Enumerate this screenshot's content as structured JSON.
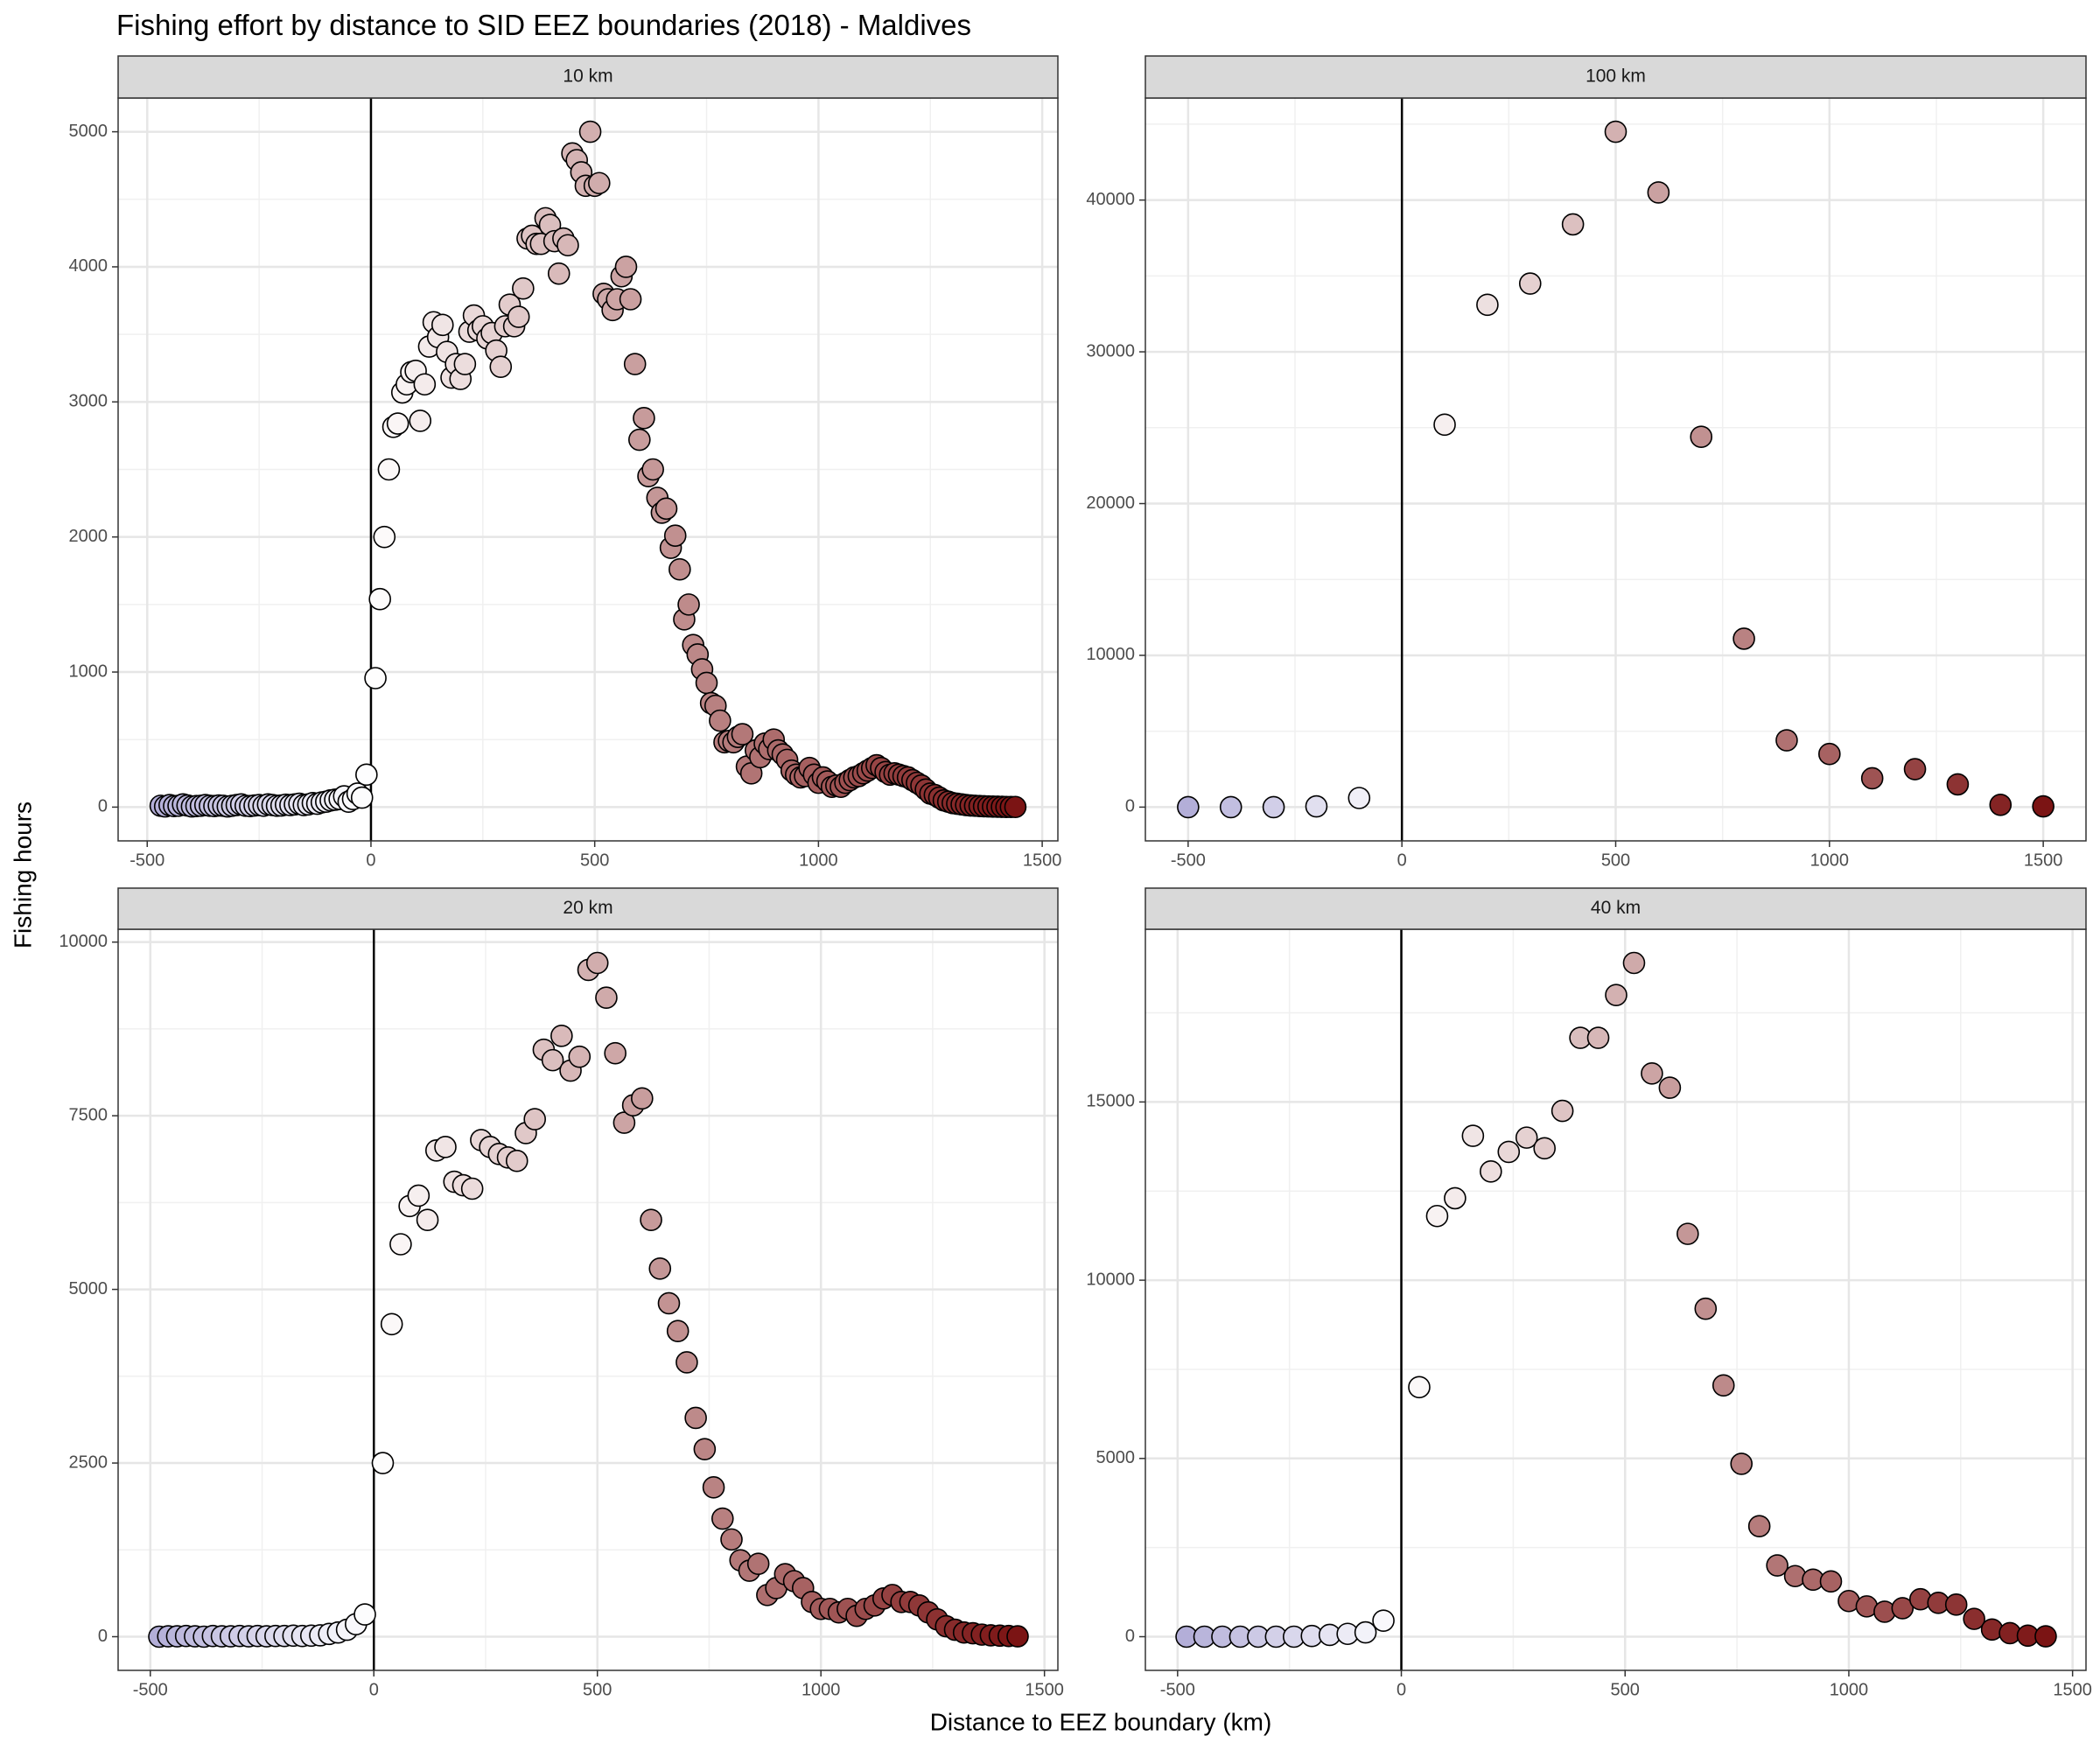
{
  "title": "Fishing effort by distance to SID EEZ boundaries (2018) - Maldives",
  "x_label": "Distance to EEZ boundary (km)",
  "y_label": "Fishing hours",
  "color_scale": {
    "low": "#b3aed8",
    "mid": "#ffffff",
    "high": "#7b1414"
  },
  "chart_data": [
    {
      "type": "scatter",
      "title": "10 km",
      "x": [
        -470,
        -460,
        -450,
        -440,
        -430,
        -420,
        -410,
        -400,
        -390,
        -380,
        -370,
        -360,
        -350,
        -340,
        -330,
        -320,
        -310,
        -300,
        -290,
        -280,
        -270,
        -260,
        -250,
        -240,
        -230,
        -220,
        -210,
        -200,
        -190,
        -180,
        -170,
        -160,
        -150,
        -140,
        -130,
        -120,
        -110,
        -100,
        -90,
        -80,
        -70,
        -60,
        -50,
        -40,
        -30,
        -20,
        -10,
        10,
        20,
        30,
        40,
        50,
        60,
        70,
        80,
        90,
        100,
        110,
        120,
        130,
        140,
        150,
        160,
        170,
        180,
        190,
        200,
        210,
        220,
        230,
        240,
        250,
        260,
        270,
        280,
        290,
        300,
        310,
        320,
        330,
        340,
        350,
        360,
        370,
        380,
        390,
        400,
        410,
        420,
        430,
        440,
        450,
        460,
        470,
        480,
        490,
        500,
        510,
        520,
        530,
        540,
        550,
        560,
        570,
        580,
        590,
        600,
        610,
        620,
        630,
        640,
        650,
        660,
        670,
        680,
        690,
        700,
        710,
        720,
        730,
        740,
        750,
        760,
        770,
        780,
        790,
        800,
        810,
        820,
        830,
        840,
        850,
        860,
        870,
        880,
        890,
        900,
        910,
        920,
        930,
        940,
        950,
        960,
        970,
        980,
        990,
        1000,
        1010,
        1020,
        1030,
        1040,
        1050,
        1060,
        1070,
        1080,
        1090,
        1100,
        1110,
        1120,
        1130,
        1140,
        1150,
        1160,
        1170,
        1180,
        1190,
        1200,
        1210,
        1220,
        1230,
        1240,
        1250,
        1260,
        1270,
        1280,
        1290,
        1300,
        1310,
        1320,
        1330,
        1340,
        1350,
        1360,
        1370,
        1380,
        1390,
        1400,
        1410,
        1420,
        1430,
        1440
      ],
      "values": [
        10,
        5,
        15,
        8,
        10,
        20,
        12,
        5,
        8,
        10,
        15,
        10,
        8,
        12,
        10,
        5,
        10,
        15,
        20,
        10,
        8,
        12,
        15,
        10,
        20,
        15,
        10,
        12,
        18,
        15,
        20,
        25,
        15,
        20,
        30,
        25,
        35,
        40,
        50,
        55,
        60,
        80,
        40,
        60,
        100,
        70,
        240,
        955,
        1540,
        2000,
        2500,
        2815,
        2840,
        3070,
        3130,
        3220,
        3230,
        2860,
        3130,
        3410,
        3590,
        3480,
        3570,
        3370,
        3180,
        3280,
        3170,
        3280,
        3520,
        3640,
        3530,
        3560,
        3470,
        3510,
        3380,
        3260,
        3560,
        3720,
        3560,
        3630,
        3840,
        4210,
        4230,
        4170,
        4170,
        4360,
        4310,
        4190,
        3950,
        4210,
        4160,
        4840,
        4790,
        4700,
        4600,
        5000,
        4600,
        4620,
        3800,
        3760,
        3680,
        3760,
        3930,
        4000,
        3760,
        3280,
        2720,
        2880,
        2450,
        2500,
        2290,
        2180,
        2210,
        1920,
        2010,
        1760,
        1390,
        1500,
        1200,
        1130,
        1020,
        920,
        770,
        750,
        640,
        480,
        490,
        480,
        520,
        540,
        300,
        250,
        420,
        370,
        470,
        430,
        500,
        420,
        390,
        350,
        270,
        240,
        220,
        230,
        290,
        240,
        180,
        220,
        190,
        150,
        160,
        150,
        180,
        200,
        220,
        230,
        250,
        270,
        290,
        310,
        290,
        260,
        240,
        250,
        240,
        230,
        220,
        200,
        180,
        160,
        130,
        100,
        90,
        70,
        50,
        40,
        30,
        25,
        20,
        15,
        12,
        10,
        8,
        6,
        5,
        4,
        3,
        2,
        1,
        1,
        1
      ],
      "xlim": [
        -565,
        1535
      ],
      "ylim": [
        -250,
        5250
      ],
      "xticks": [
        -500,
        0,
        500,
        1000,
        1500
      ],
      "yticks": [
        0,
        1000,
        2000,
        3000,
        4000,
        5000
      ],
      "xminor": [
        -250,
        250,
        750,
        1250
      ],
      "yminor": [
        500,
        1500,
        2500,
        3500,
        4500
      ],
      "vline": 0
    },
    {
      "type": "scatter",
      "title": "100 km",
      "x": [
        -500,
        -400,
        -300,
        -200,
        -100,
        100,
        200,
        300,
        400,
        500,
        600,
        700,
        800,
        900,
        1000,
        1100,
        1200,
        1300,
        1400,
        1500
      ],
      "values": [
        0,
        0,
        0,
        50,
        600,
        25200,
        33100,
        34500,
        38400,
        44500,
        40500,
        24400,
        11100,
        4400,
        3500,
        1900,
        2500,
        1500,
        150,
        50
      ],
      "xlim": [
        -600,
        1600
      ],
      "ylim": [
        -2225,
        46725
      ],
      "xticks": [
        -500,
        0,
        500,
        1000,
        1500
      ],
      "yticks": [
        0,
        10000,
        20000,
        30000,
        40000
      ],
      "xminor": [
        -250,
        250,
        750,
        1250
      ],
      "yminor": [
        5000,
        15000,
        25000,
        35000,
        45000
      ],
      "vline": 0
    },
    {
      "type": "scatter",
      "title": "20 km",
      "x": [
        -480,
        -460,
        -440,
        -420,
        -400,
        -380,
        -360,
        -340,
        -320,
        -300,
        -280,
        -260,
        -240,
        -220,
        -200,
        -180,
        -160,
        -140,
        -120,
        -100,
        -80,
        -60,
        -40,
        -20,
        20,
        40,
        60,
        80,
        100,
        120,
        140,
        160,
        180,
        200,
        220,
        240,
        260,
        280,
        300,
        320,
        340,
        360,
        380,
        400,
        420,
        440,
        460,
        480,
        500,
        520,
        540,
        560,
        580,
        600,
        620,
        640,
        660,
        680,
        700,
        720,
        740,
        760,
        780,
        800,
        820,
        840,
        860,
        880,
        900,
        920,
        940,
        960,
        980,
        1000,
        1020,
        1040,
        1060,
        1080,
        1100,
        1120,
        1140,
        1160,
        1180,
        1200,
        1220,
        1240,
        1260,
        1280,
        1300,
        1320,
        1340,
        1360,
        1380,
        1400,
        1420,
        1440
      ],
      "values": [
        0,
        5,
        5,
        10,
        5,
        0,
        10,
        5,
        5,
        10,
        5,
        10,
        5,
        10,
        10,
        15,
        10,
        15,
        20,
        40,
        60,
        100,
        180,
        320,
        2500,
        4500,
        5650,
        6200,
        6350,
        6000,
        7000,
        7050,
        6550,
        6500,
        6450,
        7150,
        7050,
        6950,
        6900,
        6850,
        7250,
        7450,
        8450,
        8300,
        8650,
        8150,
        8350,
        9600,
        9700,
        9200,
        8400,
        7400,
        7650,
        7750,
        6000,
        5300,
        4800,
        4400,
        3950,
        3150,
        2700,
        2150,
        1700,
        1400,
        1100,
        950,
        1050,
        600,
        700,
        900,
        800,
        700,
        500,
        400,
        400,
        350,
        400,
        300,
        400,
        450,
        550,
        600,
        500,
        500,
        450,
        350,
        250,
        150,
        100,
        60,
        50,
        30,
        20,
        15,
        10,
        5
      ],
      "xlim": [
        -572,
        1530
      ],
      "ylim": [
        -485,
        10185
      ],
      "xticks": [
        -500,
        0,
        500,
        1000,
        1500
      ],
      "yticks": [
        0,
        2500,
        5000,
        7500,
        10000
      ],
      "xminor": [
        -250,
        250,
        750,
        1250
      ],
      "yminor": [
        1250,
        3750,
        6250,
        8750
      ],
      "vline": 0
    },
    {
      "type": "scatter",
      "title": "40 km",
      "x": [
        -480,
        -440,
        -400,
        -360,
        -320,
        -280,
        -240,
        -200,
        -160,
        -120,
        -80,
        -40,
        40,
        80,
        120,
        160,
        200,
        240,
        280,
        320,
        360,
        400,
        440,
        480,
        520,
        560,
        600,
        640,
        680,
        720,
        760,
        800,
        840,
        880,
        920,
        960,
        1000,
        1040,
        1080,
        1120,
        1160,
        1200,
        1240,
        1280,
        1320,
        1360,
        1400,
        1440
      ],
      "values": [
        0,
        0,
        0,
        0,
        0,
        0,
        0,
        20,
        50,
        80,
        120,
        450,
        7000,
        11800,
        12300,
        14050,
        13050,
        13600,
        14000,
        13700,
        14750,
        16800,
        16800,
        18000,
        18900,
        15800,
        15400,
        11300,
        9200,
        7050,
        4850,
        3100,
        2000,
        1700,
        1600,
        1550,
        1000,
        850,
        700,
        800,
        1050,
        950,
        900,
        500,
        200,
        100,
        30,
        10
      ],
      "xlim": [
        -572,
        1530
      ],
      "ylim": [
        -945,
        19845
      ],
      "xticks": [
        -500,
        0,
        500,
        1000,
        1500
      ],
      "yticks": [
        0,
        5000,
        10000,
        15000
      ],
      "xminor": [
        -250,
        250,
        750,
        1250
      ],
      "yminor": [
        2500,
        7500,
        12500,
        17500
      ],
      "vline": 0
    }
  ]
}
